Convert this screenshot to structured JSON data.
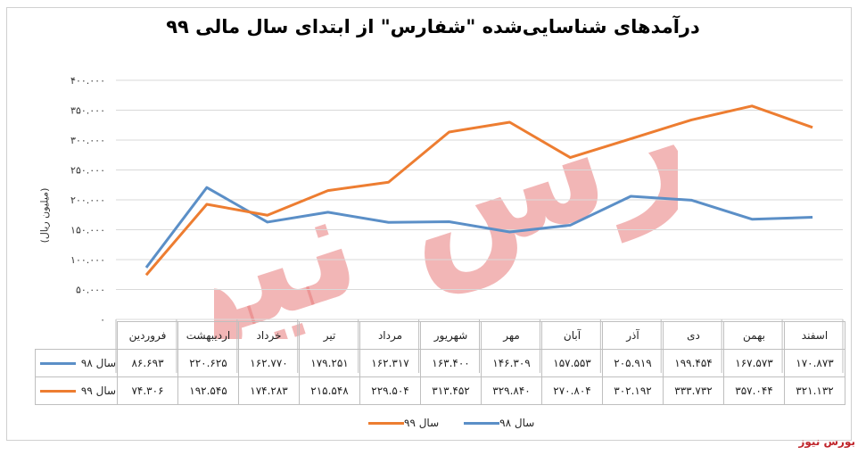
{
  "title": "درآمدهای شناسایی‌شده \"شفارس\" از ابتدای سال مالی ۹۹",
  "source_label": "بورس نیوز",
  "watermark_text": "بورس نیوز",
  "colors": {
    "series_98": "#5b8fc7",
    "series_99": "#ed7d31",
    "grid": "#d9d9d9",
    "watermark": "#e87a7a"
  },
  "chart_data": {
    "type": "line",
    "categories": [
      "فروردین",
      "اردیبهشت",
      "خرداد",
      "تیر",
      "مرداد",
      "شهریور",
      "مهر",
      "آبان",
      "آذر",
      "دی",
      "بهمن",
      "اسفند"
    ],
    "series": [
      {
        "name": "سال ۹۸",
        "values": [
          86693,
          220625,
          162770,
          179251,
          162317,
          163400,
          146309,
          157553,
          205919,
          199454,
          167573,
          170873
        ],
        "labels": [
          "۸۶.۶۹۳",
          "۲۲۰.۶۲۵",
          "۱۶۲.۷۷۰",
          "۱۷۹.۲۵۱",
          "۱۶۲.۳۱۷",
          "۱۶۳.۴۰۰",
          "۱۴۶.۳۰۹",
          "۱۵۷.۵۵۳",
          "۲۰۵.۹۱۹",
          "۱۹۹.۴۵۴",
          "۱۶۷.۵۷۳",
          "۱۷۰.۸۷۳"
        ]
      },
      {
        "name": "سال ۹۹",
        "values": [
          74306,
          192545,
          174283,
          215548,
          229504,
          313452,
          329840,
          270804,
          302192,
          333732,
          357044,
          321132
        ],
        "labels": [
          "۷۴.۳۰۶",
          "۱۹۲.۵۴۵",
          "۱۷۴.۲۸۳",
          "۲۱۵.۵۴۸",
          "۲۲۹.۵۰۴",
          "۳۱۳.۴۵۲",
          "۳۲۹.۸۴۰",
          "۲۷۰.۸۰۴",
          "۳۰۲.۱۹۲",
          "۳۳۳.۷۳۲",
          "۳۵۷.۰۴۴",
          "۳۲۱.۱۳۲"
        ]
      }
    ],
    "ylabel": "(میلیون ریال)",
    "ylim": [
      0,
      400000
    ],
    "yticks": [
      0,
      50000,
      100000,
      150000,
      200000,
      250000,
      300000,
      350000,
      400000
    ],
    "ytick_labels": [
      "۰",
      "۵۰.۰۰۰",
      "۱۰۰.۰۰۰",
      "۱۵۰.۰۰۰",
      "۲۰۰.۰۰۰",
      "۲۵۰.۰۰۰",
      "۳۰۰.۰۰۰",
      "۳۵۰.۰۰۰",
      "۴۰۰.۰۰۰"
    ],
    "grid": true,
    "legend": "bottom",
    "x_direction": "right-to-left",
    "data_table": true
  }
}
